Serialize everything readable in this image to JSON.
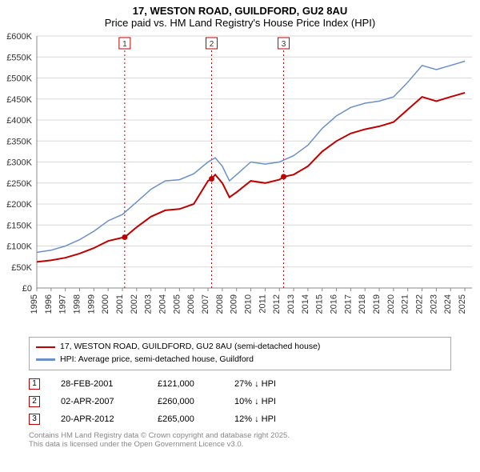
{
  "title_line1": "17, WESTON ROAD, GUILDFORD, GU2 8AU",
  "title_line2": "Price paid vs. HM Land Registry's House Price Index (HPI)",
  "chart": {
    "type": "line",
    "x_years": [
      1995,
      1996,
      1997,
      1998,
      1999,
      2000,
      2001,
      2002,
      2003,
      2004,
      2005,
      2006,
      2007,
      2008,
      2009,
      2010,
      2011,
      2012,
      2013,
      2014,
      2015,
      2016,
      2017,
      2018,
      2019,
      2020,
      2021,
      2022,
      2023,
      2024,
      2025
    ],
    "xlim": [
      1995,
      2025.5
    ],
    "ylim": [
      0,
      600000
    ],
    "ytick_step": 50000,
    "y_tick_labels": [
      "£0",
      "£50K",
      "£100K",
      "£150K",
      "£200K",
      "£250K",
      "£300K",
      "£350K",
      "£400K",
      "£450K",
      "£500K",
      "£550K",
      "£600K"
    ],
    "grid_color": "#d9d9d9",
    "background_color": "#ffffff",
    "axis_color": "#888888",
    "series": [
      {
        "name": "hpi",
        "color": "#6b8fc9",
        "line_width": 1.5,
        "x": [
          1995,
          1996,
          1997,
          1998,
          1999,
          2000,
          2001,
          2002,
          2003,
          2004,
          2005,
          2006,
          2007,
          2007.5,
          2008,
          2008.5,
          2009,
          2010,
          2011,
          2012,
          2013,
          2014,
          2015,
          2016,
          2017,
          2018,
          2019,
          2020,
          2021,
          2022,
          2023,
          2024,
          2025
        ],
        "y": [
          85000,
          90000,
          100000,
          115000,
          135000,
          160000,
          175000,
          205000,
          235000,
          255000,
          258000,
          272000,
          300000,
          310000,
          290000,
          255000,
          270000,
          300000,
          295000,
          300000,
          315000,
          340000,
          380000,
          410000,
          430000,
          440000,
          445000,
          455000,
          490000,
          530000,
          520000,
          530000,
          540000
        ]
      },
      {
        "name": "property",
        "color": "#c00000",
        "line_width": 2,
        "x": [
          1995,
          1996,
          1997,
          1998,
          1999,
          2000,
          2001,
          2001.16,
          2002,
          2003,
          2004,
          2005,
          2006,
          2007,
          2007.25,
          2007.5,
          2008,
          2008.5,
          2009,
          2010,
          2011,
          2012,
          2012.3,
          2013,
          2014,
          2015,
          2016,
          2017,
          2018,
          2019,
          2020,
          2021,
          2022,
          2023,
          2024,
          2025
        ],
        "y": [
          62000,
          66000,
          72000,
          82000,
          95000,
          112000,
          120000,
          121000,
          145000,
          170000,
          185000,
          188000,
          200000,
          255000,
          260000,
          270000,
          250000,
          216000,
          228000,
          255000,
          250000,
          258000,
          265000,
          270000,
          290000,
          325000,
          350000,
          368000,
          378000,
          385000,
          395000,
          425000,
          455000,
          445000,
          455000,
          465000
        ]
      }
    ],
    "sale_points": [
      {
        "x": 2001.16,
        "y": 121000,
        "color": "#c00000"
      },
      {
        "x": 2007.25,
        "y": 260000,
        "color": "#c00000"
      },
      {
        "x": 2012.3,
        "y": 265000,
        "color": "#c00000"
      }
    ],
    "markers": [
      {
        "label": "1",
        "x": 2001.16,
        "line_color": "#c00000"
      },
      {
        "label": "2",
        "x": 2007.25,
        "line_color": "#c00000"
      },
      {
        "label": "3",
        "x": 2012.3,
        "line_color": "#c00000"
      }
    ]
  },
  "legend": {
    "items": [
      {
        "label": "17, WESTON ROAD, GUILDFORD, GU2 8AU (semi-detached house)",
        "color": "#c00000"
      },
      {
        "label": "HPI: Average price, semi-detached house, Guildford",
        "color": "#6b8fc9"
      }
    ]
  },
  "events": [
    {
      "num": "1",
      "date": "28-FEB-2001",
      "price": "£121,000",
      "delta": "27% ↓ HPI"
    },
    {
      "num": "2",
      "date": "02-APR-2007",
      "price": "£260,000",
      "delta": "10% ↓ HPI"
    },
    {
      "num": "3",
      "date": "20-APR-2012",
      "price": "£265,000",
      "delta": "12% ↓ HPI"
    }
  ],
  "footer_line1": "Contains HM Land Registry data © Crown copyright and database right 2025.",
  "footer_line2": "This data is licensed under the Open Government Licence v3.0."
}
